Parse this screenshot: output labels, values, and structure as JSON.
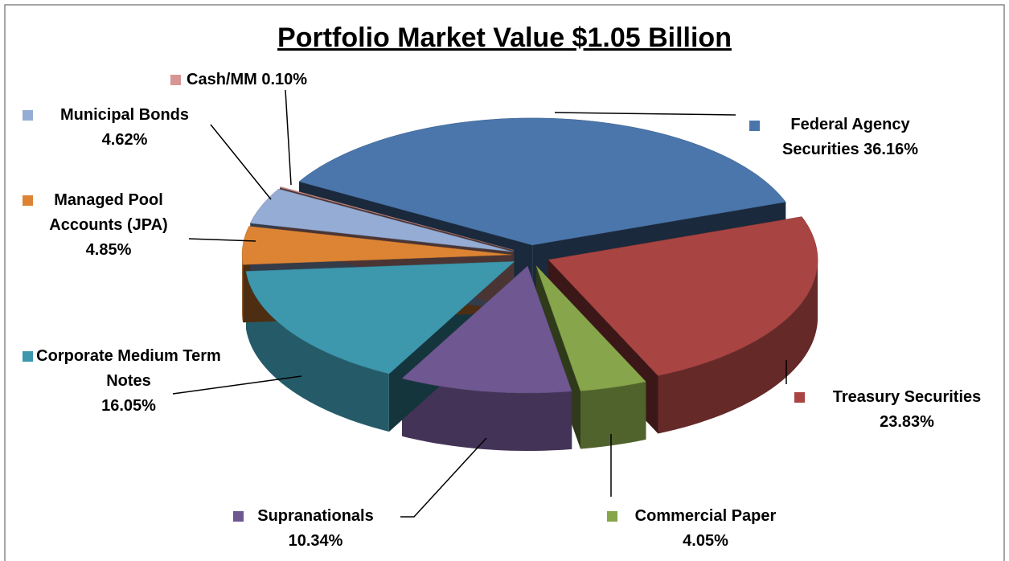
{
  "chart_data": {
    "type": "pie3d",
    "title": "Portfolio Market Value $1.05 Billion",
    "categories": [
      "Federal Agency Securities",
      "Treasury Securities",
      "Commercial Paper",
      "Supranationals",
      "Corporate Medium Term Notes",
      "Managed Pool Accounts (JPA)",
      "Municipal Bonds",
      "Cash/MM"
    ],
    "values": [
      36.16,
      23.83,
      4.05,
      10.34,
      16.05,
      4.85,
      4.62,
      0.1
    ],
    "value_labels": [
      "36.16%",
      "23.83%",
      "4.05%",
      "10.34%",
      "16.05%",
      "4.85%",
      "4.62%",
      "0.10%"
    ],
    "colors": [
      "#4a76ab",
      "#a84442",
      "#87a54a",
      "#6f5791",
      "#3d97ad",
      "#dd8434",
      "#95acd4",
      "#d69695"
    ]
  }
}
